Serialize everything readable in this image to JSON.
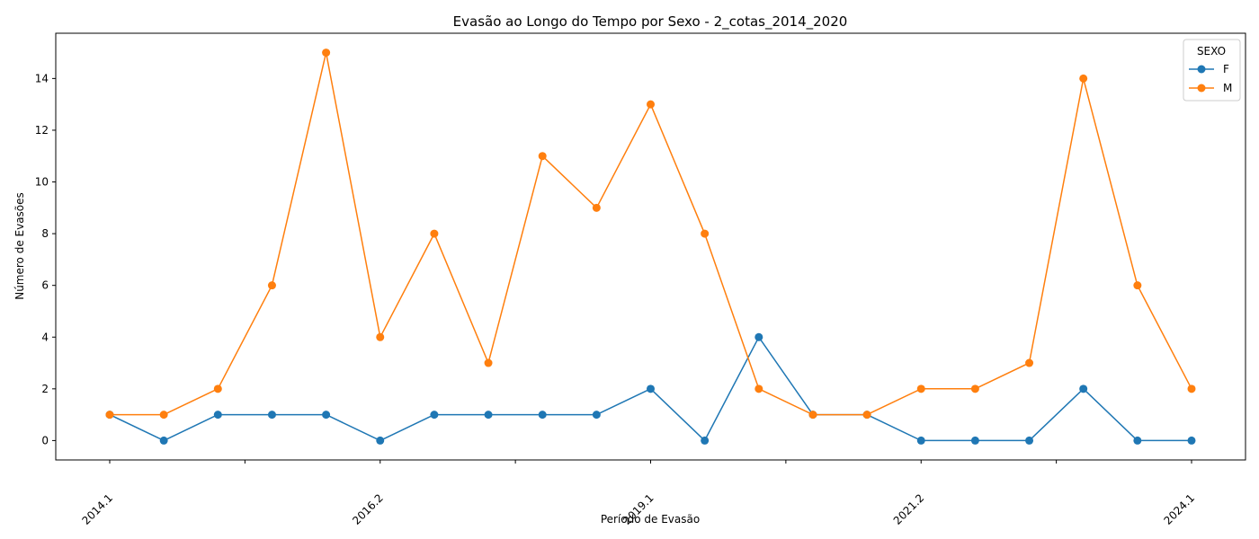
{
  "chart_data": {
    "type": "line",
    "title": "Evasão ao Longo do Tempo por Sexo - 2_cotas_2014_2020",
    "xlabel": "Período de Evasão",
    "ylabel": "Número de Evasões",
    "categories": [
      "2014.1",
      "",
      "",
      "",
      "",
      "2016.2",
      "",
      "",
      "",
      "",
      "2019.1",
      "",
      "",
      "",
      "",
      "2021.2",
      "",
      "",
      "",
      "",
      "2024.1"
    ],
    "x_tick_labels": [
      "2014.1",
      "2016.2",
      "2019.1",
      "2021.2",
      "2024.1"
    ],
    "ylim": [
      -0.75,
      15.75
    ],
    "yticks": [
      0,
      2,
      4,
      6,
      8,
      10,
      12,
      14
    ],
    "grid": false,
    "legend": {
      "title": "SEXO",
      "placement": "top-right"
    },
    "series": [
      {
        "name": "F",
        "color": "#1f77b4",
        "values": [
          1,
          0,
          1,
          1,
          1,
          0,
          1,
          1,
          1,
          1,
          2,
          0,
          4,
          1,
          1,
          0,
          0,
          0,
          2,
          0,
          0
        ]
      },
      {
        "name": "M",
        "color": "#ff7f0e",
        "values": [
          1,
          1,
          2,
          6,
          15,
          4,
          8,
          3,
          11,
          9,
          13,
          8,
          2,
          1,
          1,
          2,
          2,
          3,
          14,
          6,
          2
        ]
      }
    ]
  }
}
